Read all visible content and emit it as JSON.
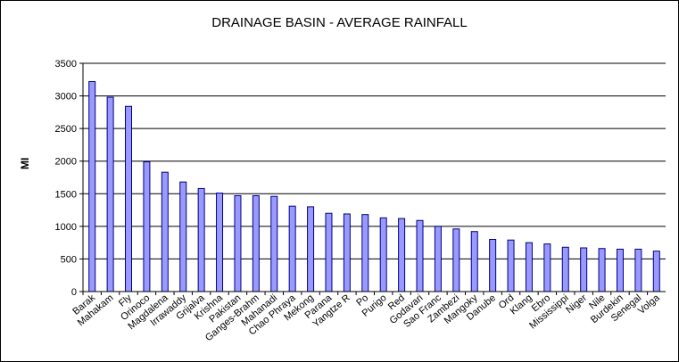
{
  "chart_data": {
    "type": "bar",
    "title": "DRAINAGE BASIN - AVERAGE RAINFALL",
    "xlabel": "",
    "ylabel": "MI",
    "ylim": [
      0,
      3500
    ],
    "yticks": [
      0,
      500,
      1000,
      1500,
      2000,
      2500,
      3000,
      3500
    ],
    "grid": true,
    "legend": "none",
    "bar_color": "#9999ff",
    "bar_edge_color": "#000080",
    "categories": [
      "Barak",
      "Mahakam",
      "Fly",
      "Orinoco",
      "Magdalena",
      "Irrawaddy",
      "Grijalva",
      "Krishna",
      "Pakistan",
      "Ganges-Brahmaputra",
      "Mahanadi",
      "Chao Phraya",
      "Mekong",
      "Parana",
      "Yangtze",
      "Po",
      "Purigo",
      "Red",
      "Godavari",
      "Sao Francisco",
      "Zambezi",
      "Mangoky",
      "Danube",
      "Ord",
      "Klang",
      "Ebro",
      "Mississippi",
      "Niger",
      "Nile",
      "Burdekin",
      "Senegal",
      "Volga"
    ],
    "tick_labels": [
      "Barak",
      "Mahakam",
      "Fly",
      "Orinoco",
      "Magdalena",
      "Irrawaddy",
      "Grijalva",
      "Krishna",
      "Pakistan",
      "Ganges-Brahm",
      "Mahanadi",
      "Chao Phraya",
      "Mekong",
      "Parana",
      "Yangtze R",
      "Po",
      "Purigo",
      "Red",
      "Godavari",
      "Sao Franc",
      "Zambezi",
      "Mangoky",
      "Danube",
      "Ord",
      "Klang",
      "Ebro",
      "Mississippi",
      "Niger",
      "Nile",
      "Burdekin",
      "Senegal",
      "Volga"
    ],
    "values": [
      3220,
      2980,
      2840,
      1990,
      1830,
      1680,
      1580,
      1510,
      1470,
      1470,
      1460,
      1310,
      1300,
      1200,
      1190,
      1180,
      1130,
      1120,
      1090,
      1000,
      960,
      920,
      800,
      790,
      750,
      730,
      680,
      670,
      660,
      650,
      650,
      620
    ]
  }
}
